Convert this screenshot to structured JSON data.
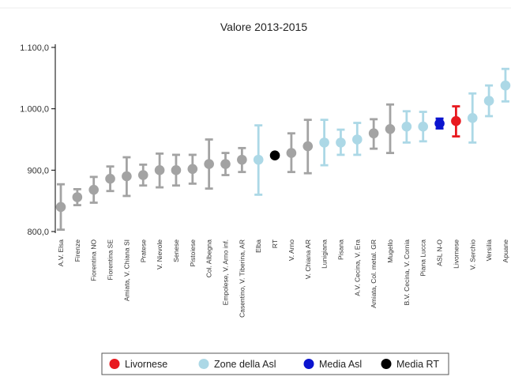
{
  "chart_data": {
    "type": "scatter",
    "title": "Valore 2013-2015",
    "xlabel": "",
    "ylabel": "",
    "ylim": [
      790,
      1120
    ],
    "yticks": [
      800,
      900,
      1000,
      1100
    ],
    "ytick_labels": [
      "800,0",
      "900,0",
      "1.000,0",
      "1.100,0"
    ],
    "grid": false,
    "legend_position": "bottom",
    "colors": {
      "Livornese": "#e8191f",
      "Zone della Asl": "#acd8e6",
      "Media Asl": "#0b14cf",
      "Media RT": "#000000",
      "Altre": "#a3a3a3"
    },
    "legend": [
      {
        "label": "Livornese",
        "color": "#e8191f"
      },
      {
        "label": "Zone della Asl",
        "color": "#acd8e6"
      },
      {
        "label": "Media Asl",
        "color": "#0b14cf"
      },
      {
        "label": "Media RT",
        "color": "#000000"
      }
    ],
    "points": [
      {
        "label": "A.V. Elsa",
        "value": 840,
        "low": 803,
        "high": 877,
        "group": "Altre"
      },
      {
        "label": "Firenze",
        "value": 856,
        "low": 843,
        "high": 869,
        "group": "Altre"
      },
      {
        "label": "Fiorentina NO",
        "value": 868,
        "low": 847,
        "high": 889,
        "group": "Altre"
      },
      {
        "label": "Fiorentina SE",
        "value": 886,
        "low": 866,
        "high": 906,
        "group": "Altre"
      },
      {
        "label": "Amiata, V. Chiana SI",
        "value": 890,
        "low": 858,
        "high": 921,
        "group": "Altre"
      },
      {
        "label": "Pratese",
        "value": 892,
        "low": 875,
        "high": 909,
        "group": "Altre"
      },
      {
        "label": "V. Nievole",
        "value": 900,
        "low": 872,
        "high": 927,
        "group": "Altre"
      },
      {
        "label": "Senese",
        "value": 900,
        "low": 875,
        "high": 925,
        "group": "Altre"
      },
      {
        "label": "Pistoiese",
        "value": 902,
        "low": 878,
        "high": 925,
        "group": "Altre"
      },
      {
        "label": "Col. Albegna",
        "value": 910,
        "low": 870,
        "high": 950,
        "group": "Altre"
      },
      {
        "label": "Empolese, V. Arno inf.",
        "value": 910,
        "low": 892,
        "high": 928,
        "group": "Altre"
      },
      {
        "label": "Casentino, V. Tiberina, AR",
        "value": 917,
        "low": 897,
        "high": 936,
        "group": "Altre"
      },
      {
        "label": "Elba",
        "value": 917,
        "low": 860,
        "high": 973,
        "group": "Zone della Asl"
      },
      {
        "label": "RT",
        "value": 924,
        "low": 921,
        "high": 927,
        "group": "Media RT"
      },
      {
        "label": "V. Arno",
        "value": 928,
        "low": 897,
        "high": 960,
        "group": "Altre"
      },
      {
        "label": "V. Chiana AR",
        "value": 939,
        "low": 895,
        "high": 982,
        "group": "Altre"
      },
      {
        "label": "Lunigiana",
        "value": 945,
        "low": 908,
        "high": 982,
        "group": "Zone della Asl"
      },
      {
        "label": "Pisana",
        "value": 945,
        "low": 925,
        "high": 966,
        "group": "Zone della Asl"
      },
      {
        "label": "A.V. Cecina, V. Era",
        "value": 950,
        "low": 925,
        "high": 977,
        "group": "Zone della Asl"
      },
      {
        "label": "Amiata, Col. metal. GR",
        "value": 960,
        "low": 935,
        "high": 983,
        "group": "Altre"
      },
      {
        "label": "Mugello",
        "value": 967,
        "low": 928,
        "high": 1007,
        "group": "Altre"
      },
      {
        "label": "B.V. Cecina, V. Cornia",
        "value": 971,
        "low": 945,
        "high": 996,
        "group": "Zone della Asl"
      },
      {
        "label": "Piana Lucca",
        "value": 971,
        "low": 947,
        "high": 995,
        "group": "Zone della Asl"
      },
      {
        "label": "ASL N-O",
        "value": 976,
        "low": 968,
        "high": 984,
        "group": "Media Asl"
      },
      {
        "label": "Livornese",
        "value": 980,
        "low": 955,
        "high": 1004,
        "group": "Livornese"
      },
      {
        "label": "V. Serchio",
        "value": 985,
        "low": 945,
        "high": 1025,
        "group": "Zone della Asl"
      },
      {
        "label": "Versilia",
        "value": 1013,
        "low": 988,
        "high": 1038,
        "group": "Zone della Asl"
      },
      {
        "label": "Apuane",
        "value": 1038,
        "low": 1012,
        "high": 1065,
        "group": "Zone della Asl"
      }
    ]
  }
}
